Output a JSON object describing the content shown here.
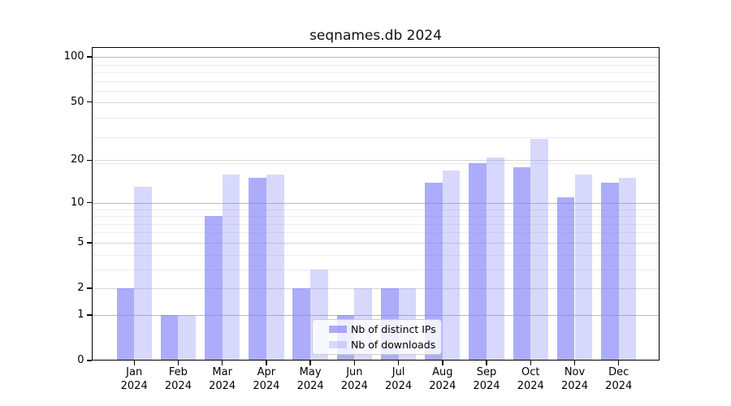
{
  "chart_data": {
    "type": "bar",
    "title": "seqnames.db 2024",
    "categories": [
      "Jan",
      "Feb",
      "Mar",
      "Apr",
      "May",
      "Jun",
      "Jul",
      "Aug",
      "Sep",
      "Oct",
      "Nov",
      "Dec"
    ],
    "xtick_year": "2024",
    "series": [
      {
        "name": "Nb of distinct IPs",
        "values": [
          2,
          1,
          8,
          15,
          2,
          1,
          2,
          14,
          19,
          18,
          11,
          14
        ],
        "color": "rgba(127,127,247,0.65)"
      },
      {
        "name": "Nb of downloads",
        "values": [
          13,
          1,
          16,
          16,
          3,
          2,
          2,
          17,
          21,
          28,
          16,
          15
        ],
        "color": "rgba(127,127,247,0.30)"
      }
    ],
    "yscale": "log1p",
    "yticks": [
      0,
      1,
      2,
      5,
      10,
      20,
      50,
      100
    ],
    "ylim": [
      0,
      117
    ],
    "grid": true,
    "legend_position": "lower center",
    "colors": {
      "bar_base": "#7f7ff7",
      "grid_major": "#b9b9b9",
      "grid_mid": "#d7d7d7",
      "grid_minor": "#ececec"
    }
  }
}
